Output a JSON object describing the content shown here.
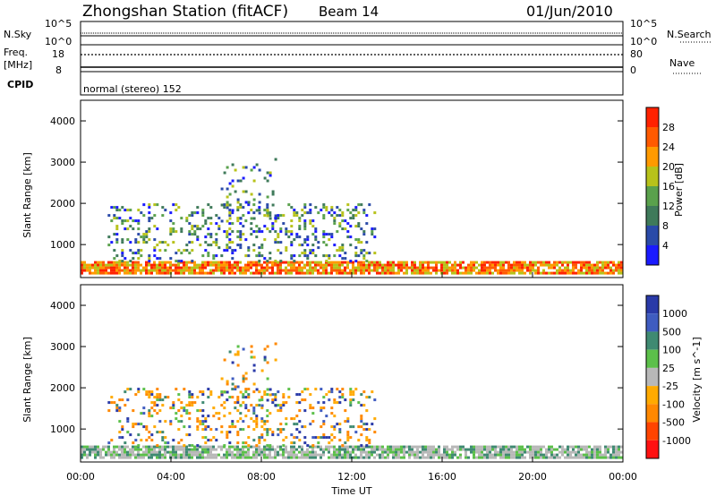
{
  "header": {
    "station": "Zhongshan Station (fitACF)",
    "beam": "Beam 14",
    "date": "01/Jun/2010"
  },
  "panels": {
    "nsky": {
      "label": "N.Sky",
      "right_label": "N.Search",
      "left_ticks": [
        "10^5",
        "10^0"
      ],
      "right_ticks": [
        "10^5",
        "10^0"
      ]
    },
    "freq": {
      "label_line1": "Freq.",
      "label_line2": "[MHz]",
      "left_ticks": [
        "18",
        "8"
      ],
      "right_ticks": [
        "80",
        "0"
      ],
      "right_label": "Nave"
    },
    "cpid": {
      "label": "CPID",
      "text": "normal (stereo) 152"
    }
  },
  "x_axis": {
    "label": "Time UT",
    "ticks": [
      "00:00",
      "04:00",
      "08:00",
      "12:00",
      "16:00",
      "20:00",
      "00:00"
    ]
  },
  "colors": {
    "power": [
      "#1a1aff",
      "#2a4aa8",
      "#3f7a5a",
      "#5aa14c",
      "#b7c21a",
      "#ff9a00",
      "#ff5a00",
      "#ff2200"
    ],
    "velocity": [
      "#2a3aa8",
      "#3f5cc0",
      "#3f8a72",
      "#5cc04a",
      "#b8b8b8",
      "#ffaa00",
      "#ff8800",
      "#ff4400",
      "#ff1111"
    ]
  },
  "chart_data": [
    {
      "type": "heatmap",
      "xlabel": "Time UT",
      "ylabel": "Slant Range [km]",
      "ylim": [
        200,
        4500
      ],
      "yticks": [
        1000,
        2000,
        3000,
        4000
      ],
      "x_range_hours": [
        0,
        24
      ],
      "colorbar": {
        "label": "Power [dB]",
        "ticks": [
          "4",
          "8",
          "12",
          "16",
          "20",
          "24",
          "28"
        ]
      },
      "series": [
        {
          "band": "near",
          "x_start_h": 0.0,
          "x_end_h": 24.0,
          "y_min_km": 300,
          "y_max_km": 600,
          "dominant_value_db": 22
        },
        {
          "band": "mid",
          "x_start_h": 1.2,
          "x_end_h": 13.0,
          "y_min_km": 600,
          "y_max_km": 2000,
          "dominant_value_db": 12
        },
        {
          "band": "far",
          "x_start_h": 6.2,
          "x_end_h": 8.6,
          "y_min_km": 1600,
          "y_max_km": 3100,
          "dominant_value_db": 8
        }
      ]
    },
    {
      "type": "heatmap",
      "xlabel": "Time UT",
      "ylabel": "Slant Range [km]",
      "ylim": [
        200,
        4500
      ],
      "yticks": [
        1000,
        2000,
        3000,
        4000
      ],
      "x_range_hours": [
        0,
        24
      ],
      "colorbar": {
        "label": "Velocity [m s^-1]",
        "ticks": [
          "1000",
          "500",
          "100",
          "25",
          "-25",
          "-100",
          "-500",
          "-1000"
        ]
      },
      "series": [
        {
          "band": "near",
          "x_start_h": 0.0,
          "x_end_h": 24.0,
          "y_min_km": 300,
          "y_max_km": 600,
          "dominant_value_ms": 25
        },
        {
          "band": "mid",
          "x_start_h": 1.2,
          "x_end_h": 13.0,
          "y_min_km": 600,
          "y_max_km": 2000,
          "dominant_value_ms": -100
        },
        {
          "band": "far",
          "x_start_h": 6.2,
          "x_end_h": 8.6,
          "y_min_km": 1600,
          "y_max_km": 3100,
          "dominant_value_ms": -100
        }
      ]
    }
  ]
}
